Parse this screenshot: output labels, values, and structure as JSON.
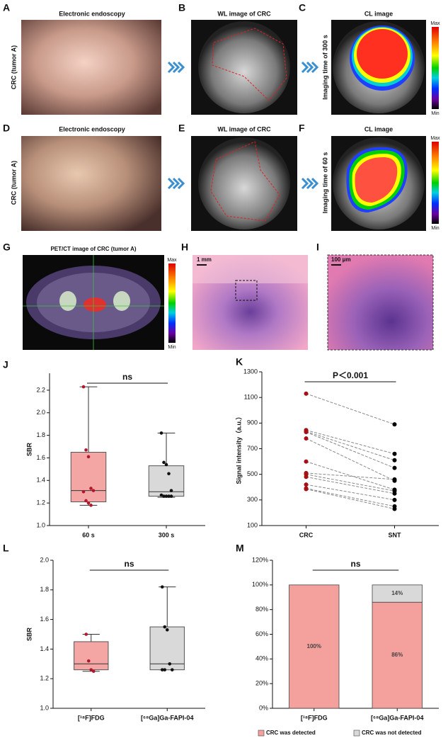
{
  "panels": [
    {
      "letter": "A",
      "title": "Electronic endoscopy",
      "ylabel": "CRC  (tumor A)"
    },
    {
      "letter": "B",
      "title": "WL image of CRC"
    },
    {
      "letter": "C",
      "title": "CL image",
      "ylabel": "Imaging time of 300 s",
      "colorbar": [
        "Max",
        "Min"
      ]
    },
    {
      "letter": "D",
      "title": "Electronic endoscopy",
      "ylabel": "CRC  (tumor A)"
    },
    {
      "letter": "E",
      "title": "WL image of CRC"
    },
    {
      "letter": "F",
      "title": "CL image",
      "ylabel": "Imaging time of 60 s",
      "colorbar": [
        "Max",
        "Min"
      ]
    },
    {
      "letter": "G",
      "title": "PET/CT image of CRC  (tumor A)",
      "colorbar": [
        "Max",
        "Min"
      ]
    },
    {
      "letter": "H",
      "scale_bar": "1 mm"
    },
    {
      "letter": "I",
      "scale_bar": "100 μm"
    }
  ],
  "chart_data": [
    {
      "type": "box",
      "letter": "J",
      "ylabel": "SBR",
      "annotation": "ns",
      "categories": [
        "60 s",
        "300 s"
      ],
      "box_colors": [
        "#f4a6a4",
        "#d9d9d9"
      ],
      "point_colors": [
        "#b2182b",
        "#111111"
      ],
      "boxes": [
        {
          "min": 1.18,
          "q1": 1.21,
          "median": 1.31,
          "q3": 1.65,
          "max": 2.23,
          "points": [
            2.23,
            1.67,
            1.61,
            1.33,
            1.31,
            1.3,
            1.22,
            1.2,
            1.18
          ]
        },
        {
          "min": 1.25,
          "q1": 1.26,
          "median": 1.3,
          "q3": 1.53,
          "max": 1.82,
          "points": [
            1.82,
            1.56,
            1.54,
            1.46,
            1.31,
            1.27,
            1.26,
            1.26,
            1.26,
            1.26
          ]
        }
      ],
      "ylim": [
        1.0,
        2.35
      ],
      "yticks": [
        {
          "value": 1.0,
          "label": "1.0"
        },
        1.2,
        1.4,
        1.6,
        1.8,
        {
          "value": 2.0,
          "label": "2.0"
        },
        2.2
      ]
    },
    {
      "type": "paired",
      "letter": "K",
      "ylabel": "Signal intensity（a.u.）",
      "annotation": "P＜0.001",
      "categories": [
        "CRC",
        "SNT"
      ],
      "point_colors": [
        "#a50f15",
        "#000000"
      ],
      "line_color": "#888888",
      "pairs": [
        [
          1130,
          890
        ],
        [
          845,
          660
        ],
        [
          835,
          610
        ],
        [
          830,
          550
        ],
        [
          780,
          450
        ],
        [
          600,
          380
        ],
        [
          510,
          460
        ],
        [
          500,
          370
        ],
        [
          480,
          350
        ],
        [
          420,
          300
        ],
        [
          390,
          250
        ],
        [
          385,
          230
        ]
      ],
      "ylim": [
        100,
        1300
      ],
      "yticks": [
        100,
        300,
        500,
        700,
        900,
        1100,
        1300
      ]
    },
    {
      "type": "box",
      "letter": "L",
      "ylabel": "SBR",
      "annotation": "ns",
      "categories": [
        "[¹⁸F]FDG",
        "[⁶⁸Ga]Ga-FAPI-04"
      ],
      "box_colors": [
        "#f4a6a4",
        "#d9d9d9"
      ],
      "point_colors": [
        "#b2182b",
        "#111111"
      ],
      "boxes": [
        {
          "min": 1.25,
          "q1": 1.26,
          "median": 1.3,
          "q3": 1.45,
          "max": 1.5,
          "points": [
            1.5,
            1.32,
            1.26,
            1.25
          ]
        },
        {
          "min": 1.26,
          "q1": 1.26,
          "median": 1.3,
          "q3": 1.55,
          "max": 1.82,
          "points": [
            1.82,
            1.55,
            1.53,
            1.3,
            1.26,
            1.26,
            1.26
          ]
        }
      ],
      "ylim": [
        1.0,
        2.0
      ],
      "yticks": [
        {
          "value": 1.0,
          "label": "1.0"
        },
        1.2,
        1.4,
        1.6,
        1.8,
        {
          "value": 2.0,
          "label": "2.0"
        }
      ]
    },
    {
      "type": "bar",
      "letter": "M",
      "stacked": true,
      "annotation": "ns",
      "categories": [
        "[¹⁸F]FDG",
        "[⁶⁸Ga]Ga-FAPI-04"
      ],
      "series": [
        {
          "name": "CRC was detected",
          "color": "#f4a09c",
          "values": [
            100,
            86
          ],
          "value_labels": [
            "100%",
            "86%"
          ]
        },
        {
          "name": "CRC was not detected",
          "color": "#d9d9d9",
          "values": [
            0,
            14
          ],
          "value_labels": [
            null,
            "14%"
          ]
        }
      ],
      "ylim": [
        0,
        120
      ],
      "yticks": [
        {
          "value": 0,
          "label": "0%"
        },
        {
          "value": 20,
          "label": "20%"
        },
        {
          "value": 40,
          "label": "40%"
        },
        {
          "value": 60,
          "label": "60%"
        },
        {
          "value": 80,
          "label": "80%"
        },
        {
          "value": 100,
          "label": "100%"
        },
        {
          "value": 120,
          "label": "120%"
        }
      ]
    }
  ]
}
